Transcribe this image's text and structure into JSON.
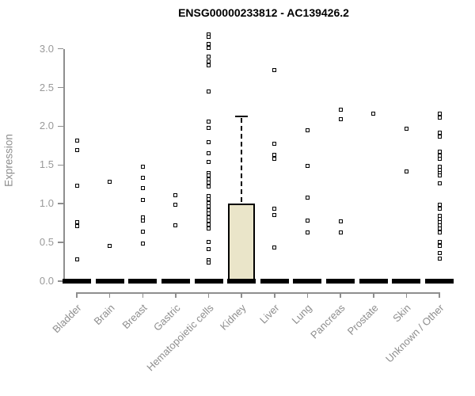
{
  "title": "ENSG00000233812 - AC139426.2",
  "colors": {
    "background": "#ffffff",
    "box_fill": "#EAE5C9",
    "marker": "#000000",
    "axis": "#8e8e8e",
    "tick_label": "#999999",
    "title_text": "#000000"
  },
  "chart_data": {
    "type": "boxplot-scatter",
    "title": "ENSG00000233812 - AC139426.2",
    "xlabel": "",
    "ylabel": "Expression",
    "ylim": [
      0,
      3.2
    ],
    "yticks": [
      0.0,
      0.5,
      1.0,
      1.5,
      2.0,
      2.5,
      3.0
    ],
    "grid": false,
    "legend": false,
    "categories": [
      "Bladder",
      "Brain",
      "Breast",
      "Gastric",
      "Hematopoietic cells",
      "Kidney",
      "Liver",
      "Lung",
      "Pancreas",
      "Prostate",
      "Skin",
      "Unknown / Other"
    ],
    "series": [
      {
        "label": "Bladder",
        "box": {
          "q1": 0,
          "median": 0,
          "q3": 0,
          "whisker_high": 0
        },
        "points": [
          1.81,
          1.69,
          1.23,
          0.76,
          0.71,
          0.28
        ]
      },
      {
        "label": "Brain",
        "box": {
          "q1": 0,
          "median": 0,
          "q3": 0,
          "whisker_high": 0
        },
        "points": [
          1.28,
          0.46
        ]
      },
      {
        "label": "Breast",
        "box": {
          "q1": 0,
          "median": 0,
          "q3": 0,
          "whisker_high": 0
        },
        "points": [
          1.48,
          1.33,
          1.2,
          1.05,
          0.82,
          0.78,
          0.64,
          0.49
        ]
      },
      {
        "label": "Gastric",
        "box": {
          "q1": 0,
          "median": 0,
          "q3": 0,
          "whisker_high": 0
        },
        "points": [
          1.11,
          0.99,
          0.72
        ]
      },
      {
        "label": "Hematopoietic cells",
        "box": {
          "q1": 0,
          "median": 0,
          "q3": 0,
          "whisker_high": 0
        },
        "points": [
          3.19,
          3.15,
          3.06,
          3.01,
          2.9,
          2.84,
          2.79,
          2.45,
          2.06,
          1.98,
          1.79,
          1.65,
          1.54,
          1.4,
          1.36,
          1.31,
          1.27,
          1.22,
          1.1,
          1.06,
          1.01,
          0.97,
          0.92,
          0.87,
          0.82,
          0.78,
          0.73,
          0.68,
          0.51,
          0.41,
          0.27,
          0.24
        ]
      },
      {
        "label": "Kidney",
        "box": {
          "q1": 0,
          "median": 0,
          "q3": 1.0,
          "whisker_high": 2.13
        },
        "points": []
      },
      {
        "label": "Liver",
        "box": {
          "q1": 0,
          "median": 0,
          "q3": 0,
          "whisker_high": 0
        },
        "points": [
          2.72,
          1.77,
          1.63,
          1.58,
          0.94,
          0.85,
          0.43
        ]
      },
      {
        "label": "Lung",
        "box": {
          "q1": 0,
          "median": 0,
          "q3": 0,
          "whisker_high": 0
        },
        "points": [
          1.95,
          1.49,
          1.08,
          0.78,
          0.63
        ]
      },
      {
        "label": "Pancreas",
        "box": {
          "q1": 0,
          "median": 0,
          "q3": 0,
          "whisker_high": 0
        },
        "points": [
          2.21,
          2.09,
          0.77,
          0.63
        ]
      },
      {
        "label": "Prostate",
        "box": {
          "q1": 0,
          "median": 0,
          "q3": 0,
          "whisker_high": 0
        },
        "points": [
          2.16
        ]
      },
      {
        "label": "Skin",
        "box": {
          "q1": 0,
          "median": 0,
          "q3": 0,
          "whisker_high": 0
        },
        "points": [
          1.97,
          1.42
        ]
      },
      {
        "label": "Unknown / Other",
        "box": {
          "q1": 0,
          "median": 0,
          "q3": 0,
          "whisker_high": 0
        },
        "points": [
          2.16,
          2.11,
          1.92,
          1.87,
          1.67,
          1.62,
          1.58,
          1.48,
          1.44,
          1.4,
          1.36,
          1.26,
          0.99,
          0.94,
          0.84,
          0.8,
          0.76,
          0.72,
          0.68,
          0.63,
          0.51,
          0.46,
          0.36,
          0.29
        ]
      }
    ]
  }
}
